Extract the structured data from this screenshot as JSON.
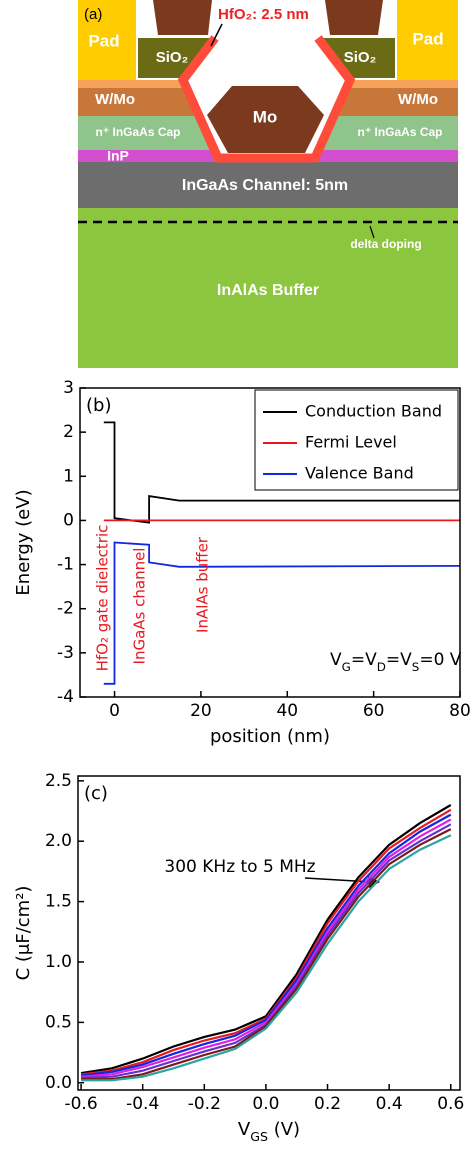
{
  "diagram": {
    "panel_label": "(a)",
    "pad_left": "Pad",
    "pad_right": "Pad",
    "sio2_left": "SiO₂",
    "sio2_right": "SiO₂",
    "hfo2": "HfO₂: 2.5 nm",
    "wmo_left": "W/Mo",
    "wmo_right": "W/Mo",
    "gate": "Mo",
    "cap_left": "n⁺ InGaAs Cap",
    "cap_right": "n⁺ InGaAs Cap",
    "inp": "InP",
    "channel": "InGaAs Channel: 5nm",
    "doping": "delta doping",
    "buffer": "InAlAs Buffer"
  },
  "chart_data": [
    {
      "type": "line",
      "panel_label": "(b)",
      "xlabel": "position (nm)",
      "ylabel": "Energy (eV)",
      "xlim": [
        -8,
        80
      ],
      "ylim": [
        -4,
        3
      ],
      "xticks": [
        0,
        20,
        40,
        60,
        80
      ],
      "yticks": [
        -4,
        -3,
        -2,
        -1,
        0,
        1,
        2,
        3
      ],
      "legend": "upper right",
      "series": [
        {
          "name": "Conduction Band",
          "color": "#000000",
          "x": [
            -2.5,
            0,
            0,
            8,
            8,
            15,
            80
          ],
          "values": [
            2.22,
            2.22,
            0.05,
            -0.05,
            0.55,
            0.45,
            0.45
          ]
        },
        {
          "name": "Fermi Level",
          "color": "#e8191e",
          "x": [
            -2.5,
            80
          ],
          "values": [
            0,
            0
          ]
        },
        {
          "name": "Valence Band",
          "color": "#1028e0",
          "x": [
            -2.5,
            0,
            0,
            8,
            8,
            15,
            80
          ],
          "values": [
            -3.7,
            -3.7,
            -0.5,
            -0.55,
            -0.95,
            -1.05,
            -1.03
          ]
        }
      ],
      "annotations": [
        "HfO₂ gate dielectric",
        "InGaAs channel",
        "InAlAs buffer"
      ],
      "condition": [
        "V",
        "G",
        "=V",
        "D",
        "=V",
        "S",
        "=0 V"
      ]
    },
    {
      "type": "line",
      "panel_label": "(c)",
      "xlabel": [
        "V",
        "GS",
        " (V)"
      ],
      "ylabel": "C (μF/cm²)",
      "xlim": [
        -0.61,
        0.63
      ],
      "ylim": [
        -0.06,
        2.54
      ],
      "xticks": [
        -0.6,
        -0.4,
        -0.2,
        {
          "value": 0,
          "label": "0.0"
        },
        0.2,
        0.4,
        0.6
      ],
      "yticks": [
        {
          "value": 0,
          "label": "0.0"
        },
        0.5,
        {
          "value": 1,
          "label": "1.0"
        },
        1.5,
        {
          "value": 2,
          "label": "2.0"
        },
        2.5
      ],
      "x": [
        -0.6,
        -0.5,
        -0.4,
        -0.3,
        -0.2,
        -0.1,
        0,
        0.1,
        0.2,
        0.3,
        0.4,
        0.5,
        0.6
      ],
      "series": [
        {
          "color": "#000000",
          "values": [
            0.08,
            0.12,
            0.2,
            0.3,
            0.38,
            0.44,
            0.55,
            0.9,
            1.35,
            1.7,
            1.97,
            2.15,
            2.3
          ]
        },
        {
          "color": "#e8191e",
          "values": [
            0.07,
            0.1,
            0.17,
            0.27,
            0.35,
            0.41,
            0.53,
            0.87,
            1.32,
            1.67,
            1.94,
            2.11,
            2.26
          ]
        },
        {
          "color": "#1028e0",
          "values": [
            0.06,
            0.09,
            0.15,
            0.24,
            0.32,
            0.39,
            0.52,
            0.85,
            1.28,
            1.63,
            1.9,
            2.08,
            2.22
          ]
        },
        {
          "color": "#e020e0",
          "values": [
            0.05,
            0.07,
            0.13,
            0.21,
            0.29,
            0.36,
            0.5,
            0.82,
            1.25,
            1.6,
            1.87,
            2.04,
            2.18
          ]
        },
        {
          "color": "#6a2fd0",
          "values": [
            0.04,
            0.05,
            0.1,
            0.18,
            0.26,
            0.33,
            0.48,
            0.8,
            1.22,
            1.57,
            1.84,
            2.0,
            2.14
          ]
        },
        {
          "color": "#7a1a1a",
          "values": [
            0.03,
            0.03,
            0.07,
            0.15,
            0.23,
            0.3,
            0.47,
            0.78,
            1.19,
            1.54,
            1.81,
            1.97,
            2.1
          ]
        },
        {
          "color": "#2aa3a3",
          "values": [
            0.02,
            0.02,
            0.05,
            0.12,
            0.2,
            0.28,
            0.45,
            0.75,
            1.15,
            1.5,
            1.77,
            1.93,
            2.05
          ]
        }
      ],
      "annotation": "300 KHz to 5 MHz"
    }
  ]
}
